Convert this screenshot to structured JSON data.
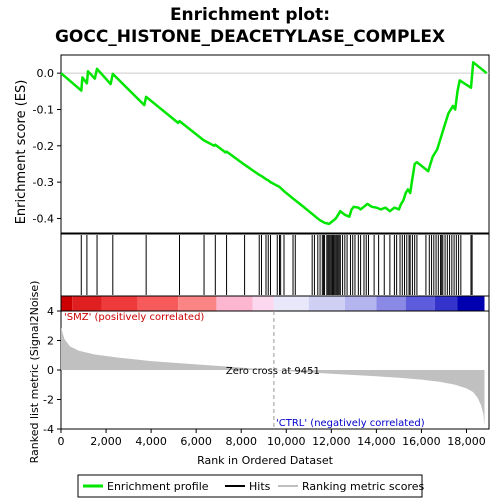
{
  "chart_data": {
    "type": "line",
    "title_line1": "Enrichment plot:",
    "title_line2": "GOCC_HISTONE_DEACETYLASE_COMPLEX",
    "xlabel": "Rank in Ordered Dataset",
    "ylabel_top": "Enrichment score (ES)",
    "ylabel_bottom": "Ranked list metric (Signal2Noise)",
    "xlim": [
      0,
      19000
    ],
    "x_ticks": [
      0,
      2000,
      4000,
      6000,
      8000,
      10000,
      12000,
      14000,
      16000,
      18000
    ],
    "x_tick_labels": [
      "0",
      "2,000",
      "4,000",
      "6,000",
      "8,000",
      "10,000",
      "12,000",
      "14,000",
      "16,000",
      "18,000"
    ],
    "es_ylim": [
      -0.44,
      0.05
    ],
    "es_ticks": [
      0.0,
      -0.1,
      -0.2,
      -0.3,
      -0.4
    ],
    "es_tick_labels": [
      "0.0",
      "-0.1",
      "-0.2",
      "-0.3",
      "-0.4"
    ],
    "metric_ylim": [
      -4,
      4
    ],
    "metric_ticks": [
      4,
      2,
      0,
      -2,
      -4
    ],
    "metric_tick_labels": [
      "4",
      "2",
      "0",
      "-2",
      "-4"
    ],
    "zero_cross_rank": 9451,
    "zero_cross_label": "Zero cross at 9451",
    "pos_label": "'SMZ' (positively correlated)",
    "neg_label": "'CTRL' (negatively correlated)",
    "colors": {
      "es_line": "#00e600",
      "hits": "#000000",
      "metric_fill": "#c0c0c0",
      "pos_label": "#cc0000",
      "neg_label": "#0000cc"
    },
    "series": [
      {
        "name": "Enrichment profile",
        "x": [
          0,
          900,
          950,
          1150,
          1200,
          1500,
          1600,
          2200,
          2300,
          3700,
          3780,
          5200,
          5260,
          6300,
          6350,
          6800,
          6850,
          7300,
          7350,
          8100,
          8150,
          8800,
          8900,
          9100,
          9200,
          9300,
          9600,
          9700,
          9900,
          10300,
          10400,
          10600,
          11200,
          11300,
          11500,
          11700,
          11900,
          12000,
          12100,
          12200,
          12300,
          12400,
          12600,
          12800,
          12900,
          13000,
          13200,
          13300,
          13500,
          13600,
          13800,
          14000,
          14200,
          14400,
          14600,
          14800,
          15000,
          15100,
          15200,
          15300,
          15400,
          15500,
          15600,
          15700,
          15800,
          16300,
          16400,
          16500,
          16700,
          16800,
          16900,
          17000,
          17100,
          17200,
          17400,
          17500,
          17600,
          17700,
          18200,
          18300,
          18900
        ],
        "y": [
          0.0,
          -0.048,
          -0.012,
          -0.028,
          0.005,
          -0.015,
          0.012,
          -0.03,
          -0.002,
          -0.088,
          -0.065,
          -0.137,
          -0.132,
          -0.183,
          -0.185,
          -0.2,
          -0.197,
          -0.218,
          -0.216,
          -0.25,
          -0.252,
          -0.28,
          -0.283,
          -0.292,
          -0.295,
          -0.3,
          -0.31,
          -0.313,
          -0.325,
          -0.345,
          -0.35,
          -0.36,
          -0.39,
          -0.395,
          -0.405,
          -0.412,
          -0.415,
          -0.41,
          -0.405,
          -0.4,
          -0.39,
          -0.38,
          -0.39,
          -0.395,
          -0.375,
          -0.368,
          -0.37,
          -0.375,
          -0.365,
          -0.36,
          -0.368,
          -0.37,
          -0.375,
          -0.37,
          -0.38,
          -0.37,
          -0.375,
          -0.36,
          -0.35,
          -0.33,
          -0.32,
          -0.33,
          -0.29,
          -0.25,
          -0.245,
          -0.27,
          -0.25,
          -0.23,
          -0.21,
          -0.19,
          -0.17,
          -0.15,
          -0.13,
          -0.11,
          -0.09,
          -0.1,
          -0.05,
          -0.02,
          -0.04,
          0.03,
          0.0
        ]
      }
    ],
    "hit_ranks": [
      900,
      1150,
      1600,
      2300,
      3780,
      5260,
      6350,
      6850,
      7350,
      8150,
      8800,
      8900,
      9100,
      9200,
      9300,
      9600,
      9700,
      9750,
      9900,
      10300,
      10400,
      11150,
      11250,
      11400,
      11500,
      11600,
      11650,
      11700,
      11800,
      11850,
      11900,
      11950,
      12000,
      12050,
      12100,
      12150,
      12200,
      12250,
      12300,
      12350,
      12400,
      12500,
      12600,
      12700,
      12850,
      12950,
      13050,
      13200,
      13300,
      13450,
      13550,
      13650,
      13900,
      14100,
      14350,
      14600,
      14800,
      14900,
      15050,
      15150,
      15250,
      15350,
      15450,
      15500,
      15600,
      15700,
      15800,
      16200,
      16350,
      16450,
      16550,
      16650,
      16750,
      16850,
      16900,
      16950,
      17050,
      17150,
      17250,
      17350,
      17450,
      17550,
      17650,
      17750,
      18200,
      18250
    ],
    "metric_profile": {
      "x": [
        0,
        150,
        400,
        800,
        1500,
        2500,
        4000,
        6000,
        7500,
        8500,
        9451,
        10500,
        12000,
        13500,
        15000,
        16000,
        16800,
        17500,
        18000,
        18300,
        18500,
        18650,
        18750,
        18800
      ],
      "y": [
        2.9,
        2.1,
        1.6,
        1.3,
        1.05,
        0.85,
        0.6,
        0.38,
        0.22,
        0.1,
        0.0,
        -0.12,
        -0.25,
        -0.38,
        -0.52,
        -0.65,
        -0.8,
        -1.0,
        -1.25,
        -1.5,
        -1.9,
        -2.4,
        -3.0,
        -3.8
      ]
    },
    "legend": [
      {
        "label": "Enrichment profile",
        "kind": "line",
        "color": "#00e600"
      },
      {
        "label": "Hits",
        "kind": "line",
        "color": "#000000"
      },
      {
        "label": "Ranking metric scores",
        "kind": "line",
        "color": "#c0c0c0"
      }
    ]
  }
}
